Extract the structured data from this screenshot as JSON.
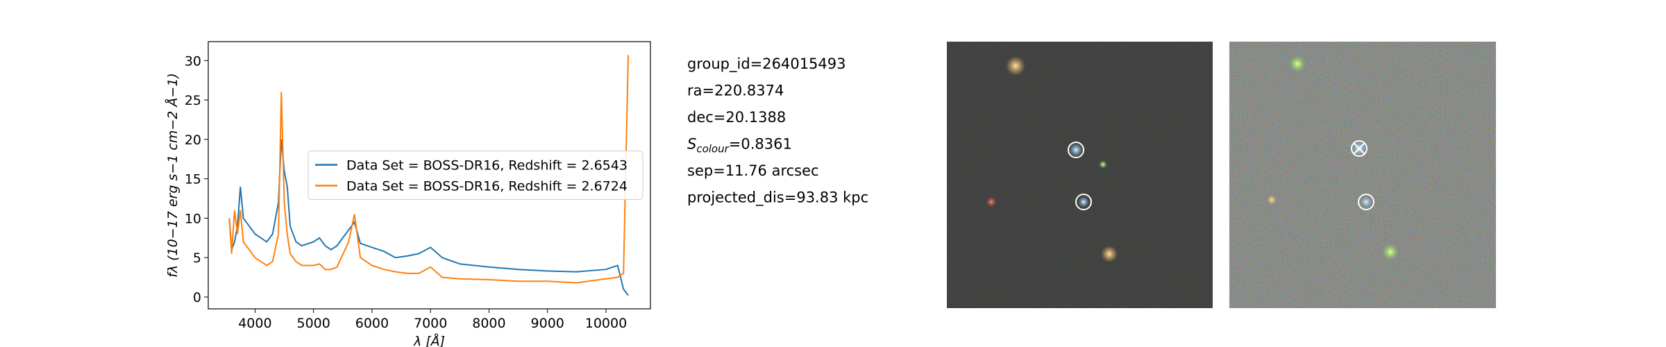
{
  "chart_data": {
    "type": "line",
    "xlabel": "λ [Å]",
    "ylabel": "fλ (10−17 erg s−1 cm−2 Å−1)",
    "x": [
      3560,
      3600,
      3650,
      3700,
      3750,
      3800,
      3900,
      4000,
      4100,
      4200,
      4300,
      4400,
      4450,
      4500,
      4550,
      4600,
      4700,
      4800,
      5000,
      5100,
      5200,
      5300,
      5400,
      5600,
      5700,
      5800,
      6000,
      6200,
      6400,
      6600,
      6800,
      7000,
      7200,
      7500,
      8000,
      8500,
      9000,
      9500,
      10000,
      10200,
      10300,
      10380
    ],
    "series": [
      {
        "name": "Data Set = BOSS-DR16, Redshift = 2.6543",
        "color": "#1f77b4",
        "values": [
          10,
          6,
          7,
          9,
          14,
          10,
          9,
          8,
          7.5,
          7,
          8,
          12,
          20,
          16,
          14,
          9,
          7,
          6.5,
          7,
          7.5,
          6.5,
          6,
          6.5,
          8.5,
          9.5,
          6.8,
          6.3,
          5.8,
          5,
          5.2,
          5.5,
          6.3,
          5,
          4.2,
          3.8,
          3.5,
          3.3,
          3.2,
          3.5,
          4,
          1,
          0.2
        ]
      },
      {
        "name": "Data Set = BOSS-DR16, Redshift = 2.6724",
        "color": "#ff7f0e",
        "values": [
          10,
          5.5,
          11,
          8,
          11,
          7,
          6,
          5,
          4.5,
          4,
          4.5,
          8,
          26,
          12,
          8,
          5.5,
          4.5,
          4,
          4,
          4.2,
          3.5,
          3.5,
          3.8,
          7,
          10.5,
          5,
          4,
          3.5,
          3.2,
          3,
          3,
          3.8,
          2.5,
          2.3,
          2.2,
          2.0,
          2.0,
          1.8,
          2.3,
          2.5,
          3,
          30.7
        ]
      }
    ],
    "xlim": [
      3200,
      10760
    ],
    "xticks": [
      4000,
      5000,
      6000,
      7000,
      8000,
      9000,
      10000
    ],
    "ylim": [
      -1.5,
      32.4
    ],
    "yticks": [
      0,
      5,
      10,
      15,
      20,
      25,
      30
    ],
    "legend": "center right"
  },
  "info": {
    "lines": [
      "group_id=264015493",
      "ra=220.8374",
      "dec=20.1388"
    ],
    "colour": {
      "symbol": "S",
      "subscript": "colour",
      "text": "=0.8361"
    },
    "more": [
      "sep=11.76 arcsec",
      "projected_dis=93.83 kpc"
    ]
  }
}
